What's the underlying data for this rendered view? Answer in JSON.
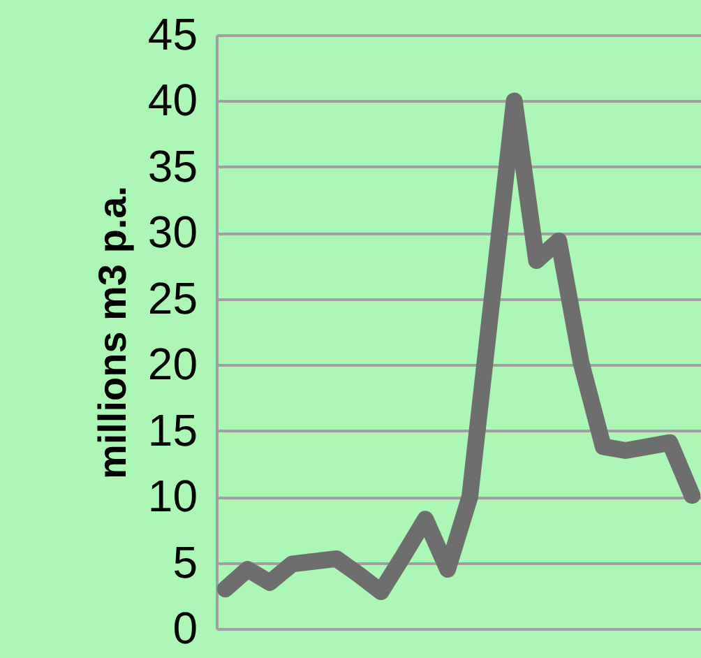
{
  "chart_data": {
    "type": "line",
    "ylabel": "millions m3 p.a.",
    "categories": [
      null,
      null,
      null,
      null,
      null,
      null,
      null,
      null,
      null,
      null,
      null,
      null,
      null,
      null,
      null,
      null,
      null,
      null,
      null,
      null,
      null,
      null
    ],
    "series": [
      {
        "color": "#6e6e6e",
        "values": [
          3.0,
          4.5,
          3.5,
          4.9,
          5.1,
          5.3,
          4.1,
          2.8,
          5.5,
          8.3,
          4.5,
          10,
          25,
          40,
          27.9,
          29.4,
          20.2,
          13.8,
          13.5,
          13.8,
          14.1,
          10.1
        ]
      }
    ],
    "ylim": [
      0,
      45
    ],
    "yticks": [
      0,
      5,
      10,
      15,
      20,
      25,
      30,
      35,
      40,
      45
    ],
    "grid": "y",
    "tick_labels": "y",
    "marker": "none",
    "line_style": "solid"
  }
}
